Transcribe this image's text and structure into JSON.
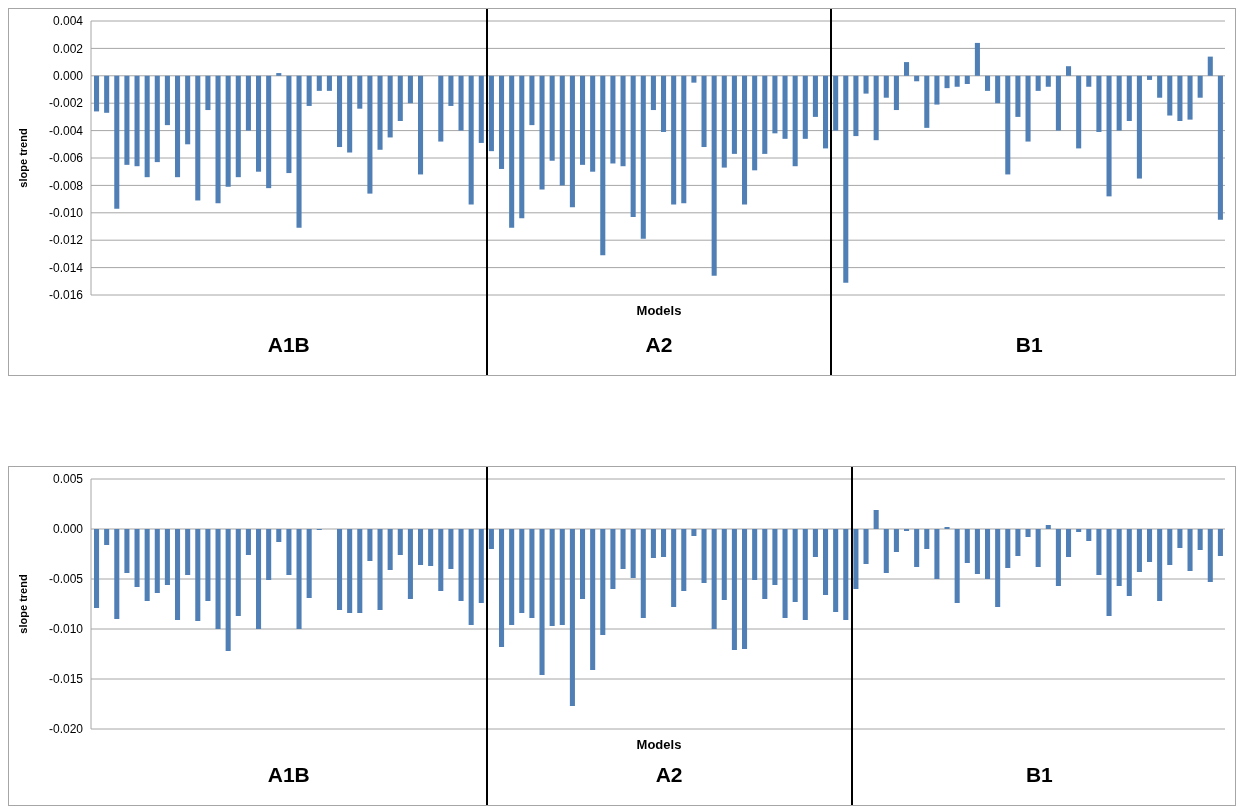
{
  "chart_data": [
    {
      "type": "bar",
      "xlabel": "Models",
      "ylabel": "slope trend",
      "color": "#4f7fb5",
      "grid": "y",
      "tick_labels": "y",
      "categories": [
        null,
        null,
        null,
        null,
        null,
        null,
        null,
        null,
        null,
        null,
        null,
        null,
        null,
        null,
        null,
        null,
        null,
        null,
        null,
        null,
        null,
        null,
        null,
        null,
        null,
        null,
        null,
        null,
        null,
        null,
        null,
        null,
        null,
        null,
        null,
        null,
        null,
        null,
        null,
        null,
        null,
        null,
        null,
        null,
        null,
        null,
        null,
        null,
        null,
        null,
        null,
        null,
        null,
        null,
        null,
        null,
        null,
        null,
        null,
        null,
        null,
        null,
        null,
        null,
        null,
        null,
        null,
        null,
        null,
        null,
        null,
        null,
        null,
        null,
        null,
        null,
        null,
        null,
        null,
        null,
        null,
        null,
        null,
        null,
        null,
        null,
        null,
        null,
        null,
        null,
        null,
        null,
        null,
        null,
        null,
        null,
        null,
        null,
        null,
        null,
        null,
        null,
        null,
        null,
        null,
        null,
        null,
        null,
        null,
        null,
        null,
        null
      ],
      "values": [
        -0.0026,
        -0.0027,
        -0.0097,
        -0.0065,
        -0.0066,
        -0.0074,
        -0.0063,
        -0.0036,
        -0.0074,
        -0.005,
        -0.0091,
        -0.0025,
        -0.0093,
        -0.0081,
        -0.0074,
        -0.004,
        -0.007,
        -0.0082,
        0.0002,
        -0.0071,
        -0.0111,
        -0.0022,
        -0.0011,
        -0.0011,
        -0.0052,
        -0.0056,
        -0.0024,
        -0.0086,
        -0.0054,
        -0.0045,
        -0.0033,
        -0.002,
        -0.0072,
        null,
        -0.0048,
        -0.0022,
        -0.004,
        -0.0094,
        -0.0049,
        -0.0055,
        -0.0068,
        -0.0111,
        -0.0104,
        -0.0036,
        -0.0083,
        -0.0062,
        -0.008,
        -0.0096,
        -0.0065,
        -0.007,
        -0.0131,
        -0.0064,
        -0.0066,
        -0.0103,
        -0.0119,
        -0.0025,
        -0.0041,
        -0.0094,
        -0.0093,
        -0.0005,
        -0.0052,
        -0.0146,
        -0.0067,
        -0.0057,
        -0.0094,
        -0.0069,
        -0.0057,
        -0.0042,
        -0.0046,
        -0.0066,
        -0.0046,
        -0.003,
        -0.0053,
        -0.004,
        -0.0151,
        -0.0044,
        -0.0013,
        -0.0047,
        -0.0016,
        -0.0025,
        0.001,
        -0.0004,
        -0.0038,
        -0.0021,
        -0.0009,
        -0.0008,
        -0.0006,
        0.0024,
        -0.0011,
        -0.002,
        -0.0072,
        -0.003,
        -0.0048,
        -0.0011,
        -0.0008,
        -0.004,
        0.0007,
        -0.0053,
        -0.0008,
        -0.0041,
        -0.0088,
        -0.004,
        -0.0033,
        -0.0075,
        -0.0003,
        -0.0016,
        -0.0029,
        -0.0033,
        -0.0032,
        -0.0016,
        0.0014,
        -0.0105
      ],
      "ylim": [
        -0.016,
        0.004
      ],
      "yticks": [
        {
          "value": 0.004,
          "label": "0.004"
        },
        {
          "value": 0.002,
          "label": "0.002"
        },
        {
          "value": 0,
          "label": "0.000"
        },
        {
          "value": -0.002,
          "label": "-0.002"
        },
        {
          "value": -0.004,
          "label": "-0.004"
        },
        {
          "value": -0.006,
          "label": "-0.006"
        },
        {
          "value": -0.008,
          "label": "-0.008"
        },
        {
          "value": -0.01,
          "label": "-0.010"
        },
        {
          "value": -0.012,
          "label": "-0.012"
        },
        {
          "value": -0.014,
          "label": "-0.014"
        },
        {
          "value": -0.016,
          "label": "-0.016"
        }
      ],
      "annotations": [
        "A1B",
        "A2",
        "B1"
      ]
    },
    {
      "type": "bar",
      "xlabel": "Models",
      "ylabel": "slope trend",
      "color": "#4f7fb5",
      "grid": "y",
      "tick_labels": "y",
      "categories": [
        null,
        null,
        null,
        null,
        null,
        null,
        null,
        null,
        null,
        null,
        null,
        null,
        null,
        null,
        null,
        null,
        null,
        null,
        null,
        null,
        null,
        null,
        null,
        null,
        null,
        null,
        null,
        null,
        null,
        null,
        null,
        null,
        null,
        null,
        null,
        null,
        null,
        null,
        null,
        null,
        null,
        null,
        null,
        null,
        null,
        null,
        null,
        null,
        null,
        null,
        null,
        null,
        null,
        null,
        null,
        null,
        null,
        null,
        null,
        null,
        null,
        null,
        null,
        null,
        null,
        null,
        null,
        null,
        null,
        null,
        null,
        null,
        null,
        null,
        null,
        null,
        null,
        null,
        null,
        null,
        null,
        null,
        null,
        null,
        null,
        null,
        null,
        null,
        null,
        null,
        null,
        null,
        null,
        null,
        null,
        null,
        null,
        null,
        null,
        null,
        null,
        null,
        null,
        null,
        null,
        null,
        null,
        null,
        null,
        null,
        null,
        null
      ],
      "values": [
        -0.0079,
        -0.0016,
        -0.009,
        -0.0044,
        -0.0058,
        -0.0072,
        -0.0064,
        -0.0056,
        -0.0091,
        -0.0046,
        -0.0092,
        -0.0072,
        -0.01,
        -0.0122,
        -0.0087,
        -0.0026,
        -0.01,
        -0.0051,
        -0.0013,
        -0.0046,
        -0.01,
        -0.0069,
        -0.0001,
        null,
        -0.0081,
        -0.0084,
        -0.0084,
        -0.0032,
        -0.0081,
        -0.0041,
        -0.0026,
        -0.007,
        -0.0036,
        -0.0037,
        -0.0062,
        -0.004,
        -0.0072,
        -0.0096,
        -0.0074,
        -0.002,
        -0.0118,
        -0.0096,
        -0.0084,
        -0.0089,
        -0.0146,
        -0.0097,
        -0.0096,
        -0.0177,
        -0.007,
        -0.0141,
        -0.0106,
        -0.006,
        -0.004,
        -0.0049,
        -0.0089,
        -0.0029,
        -0.0028,
        -0.0078,
        -0.0062,
        -0.0007,
        -0.0054,
        -0.01,
        -0.0071,
        -0.0121,
        -0.012,
        -0.0051,
        -0.007,
        -0.0056,
        -0.0089,
        -0.0073,
        -0.0091,
        -0.0028,
        -0.0066,
        -0.0083,
        -0.0091,
        -0.006,
        -0.0035,
        0.0019,
        -0.0044,
        -0.0023,
        -0.0002,
        -0.0038,
        -0.002,
        -0.005,
        0.0002,
        -0.0074,
        -0.0034,
        -0.0045,
        -0.005,
        -0.0078,
        -0.0039,
        -0.0027,
        -0.0008,
        -0.0038,
        0.0004,
        -0.0057,
        -0.0028,
        -0.0003,
        -0.0012,
        -0.0046,
        -0.0087,
        -0.0057,
        -0.0067,
        -0.0043,
        -0.0033,
        -0.0072,
        -0.0036,
        -0.0019,
        -0.0042,
        -0.0021,
        -0.0053,
        -0.0027
      ],
      "ylim": [
        -0.02,
        0.005
      ],
      "yticks": [
        {
          "value": 0.005,
          "label": "0.005"
        },
        {
          "value": 0,
          "label": "0.000"
        },
        {
          "value": -0.005,
          "label": "-0.005"
        },
        {
          "value": -0.01,
          "label": "-0.010"
        },
        {
          "value": -0.015,
          "label": "-0.015"
        },
        {
          "value": -0.02,
          "label": "-0.020"
        }
      ],
      "annotations": [
        "A1B",
        "A2",
        "B1"
      ]
    }
  ]
}
